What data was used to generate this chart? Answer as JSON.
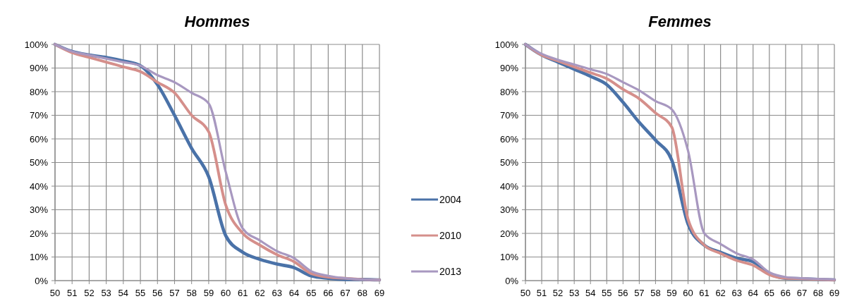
{
  "chart_data": [
    {
      "type": "line",
      "title": "Hommes",
      "x": [
        50,
        51,
        52,
        53,
        54,
        55,
        56,
        57,
        58,
        59,
        60,
        61,
        62,
        63,
        64,
        65,
        66,
        67,
        68,
        69
      ],
      "xlim": [
        50,
        69
      ],
      "xticks": [
        50,
        51,
        52,
        53,
        54,
        55,
        56,
        57,
        58,
        59,
        60,
        61,
        62,
        63,
        64,
        65,
        66,
        67,
        68,
        69
      ],
      "ylim": [
        0,
        100
      ],
      "yticks": [
        {
          "value": 0,
          "label": "0%"
        },
        {
          "value": 10,
          "label": "10%"
        },
        {
          "value": 20,
          "label": "20%"
        },
        {
          "value": 30,
          "label": "30%"
        },
        {
          "value": 40,
          "label": "40%"
        },
        {
          "value": 50,
          "label": "50%"
        },
        {
          "value": 60,
          "label": "60%"
        },
        {
          "value": 70,
          "label": "70%"
        },
        {
          "value": 80,
          "label": "80%"
        },
        {
          "value": 90,
          "label": "90%"
        },
        {
          "value": 100,
          "label": "100%"
        }
      ],
      "grid": true,
      "legend": "right",
      "series": [
        {
          "name": "2004",
          "color": "#4a72a8",
          "values": [
            100,
            97,
            95.5,
            94.5,
            93,
            91,
            83,
            70,
            56,
            44,
            19,
            12,
            9,
            7,
            5.5,
            2,
            1,
            0.5,
            0.5,
            0.3
          ]
        },
        {
          "name": "2010",
          "color": "#d58f8b",
          "values": [
            100,
            96.5,
            94.5,
            92.5,
            90.5,
            88.5,
            84,
            79.5,
            70,
            63,
            32,
            20,
            15,
            11,
            8,
            3,
            1.5,
            1,
            0.5,
            0.3
          ]
        },
        {
          "name": "2013",
          "color": "#a898c0",
          "values": [
            100,
            97,
            95.5,
            94,
            92.5,
            91,
            87,
            84,
            79.5,
            75,
            46,
            22,
            17,
            12.5,
            9.5,
            4,
            2,
            1,
            0.5,
            0.3
          ]
        }
      ]
    },
    {
      "type": "line",
      "title": "Femmes",
      "x": [
        50,
        51,
        52,
        53,
        54,
        55,
        56,
        57,
        58,
        59,
        60,
        61,
        62,
        63,
        64,
        65,
        66,
        67,
        68,
        69
      ],
      "xlim": [
        50,
        69
      ],
      "xticks": [
        50,
        51,
        52,
        53,
        54,
        55,
        56,
        57,
        58,
        59,
        60,
        61,
        62,
        63,
        64,
        65,
        66,
        67,
        68,
        69
      ],
      "ylim": [
        0,
        100
      ],
      "yticks": [
        {
          "value": 0,
          "label": "0%"
        },
        {
          "value": 10,
          "label": "10%"
        },
        {
          "value": 20,
          "label": "20%"
        },
        {
          "value": 30,
          "label": "30%"
        },
        {
          "value": 40,
          "label": "40%"
        },
        {
          "value": 50,
          "label": "50%"
        },
        {
          "value": 60,
          "label": "60%"
        },
        {
          "value": 70,
          "label": "70%"
        },
        {
          "value": 80,
          "label": "80%"
        },
        {
          "value": 90,
          "label": "90%"
        },
        {
          "value": 100,
          "label": "100%"
        }
      ],
      "grid": true,
      "series": [
        {
          "color": "#4a72a8",
          "values": [
            100,
            95.5,
            92.5,
            89.5,
            86.5,
            83,
            75.5,
            67,
            59.5,
            51,
            24,
            15,
            12,
            9.5,
            8,
            3,
            1,
            0.8,
            0.5,
            0.3
          ]
        },
        {
          "color": "#d58f8b",
          "values": [
            100,
            95.5,
            93,
            90.5,
            88,
            85.5,
            81,
            77,
            71,
            65,
            26,
            15,
            11.5,
            8.5,
            6.5,
            2.5,
            1,
            0.8,
            0.5,
            0.3
          ]
        },
        {
          "color": "#a898c0",
          "values": [
            100,
            96,
            93.5,
            91.5,
            89.5,
            87.5,
            84,
            80.5,
            76,
            72.5,
            55,
            20,
            15.5,
            11.5,
            9,
            3.5,
            1.5,
            1,
            0.7,
            0.5
          ]
        }
      ]
    }
  ]
}
